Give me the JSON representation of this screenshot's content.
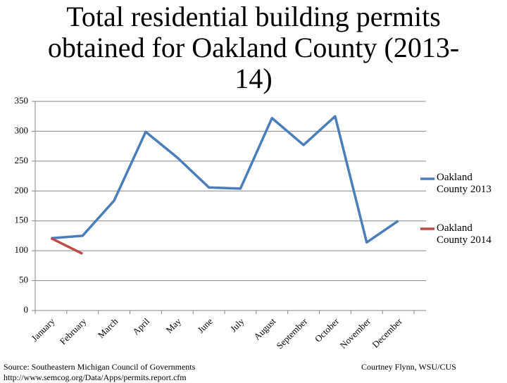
{
  "chart_data": {
    "type": "line",
    "title": "Total residential building permits obtained for Oakland County (2013-14)",
    "categories": [
      "January",
      "February",
      "March",
      "April",
      "May",
      "June",
      "July",
      "August",
      "September",
      "October",
      "November",
      "December"
    ],
    "series": [
      {
        "name": "Oakland County 2013",
        "color": "#4a7ebb",
        "values": [
          121,
          125,
          184,
          299,
          256,
          206,
          204,
          322,
          277,
          325,
          114,
          150
        ]
      },
      {
        "name": "Oakland County 2014",
        "color": "#be4b48",
        "values": [
          121,
          95,
          null,
          null,
          null,
          null,
          null,
          null,
          null,
          null,
          null,
          null
        ]
      }
    ],
    "ylim": [
      0,
      350
    ],
    "yticks": [
      0,
      50,
      100,
      150,
      200,
      250,
      300,
      350
    ],
    "grid": true,
    "legend": "right",
    "source": "Source: Southeastern Michigan Council of Governments",
    "url": "http://www.semcog.org/Data/Apps/permits.report.cfm",
    "credit": "Courtney Flynn, WSU/CUS"
  }
}
